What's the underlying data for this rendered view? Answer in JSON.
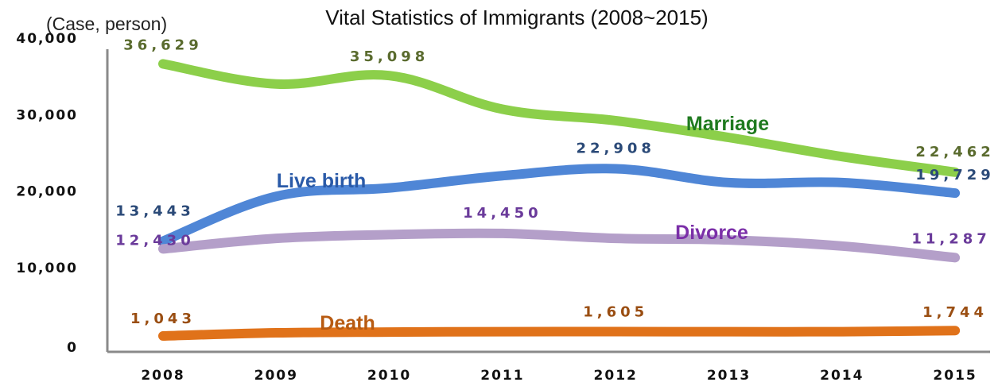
{
  "chart_data": {
    "type": "line",
    "title": "Vital Statistics of Immigrants (2008~2015)",
    "unit_label": "(Case, person)",
    "categories": [
      "2008",
      "2009",
      "2010",
      "2011",
      "2012",
      "2013",
      "2014",
      "2015"
    ],
    "y_ticks": [
      "0",
      "10,000",
      "20,000",
      "30,000",
      "40,000"
    ],
    "ylim": [
      0,
      40000
    ],
    "grid": false,
    "series": [
      {
        "name": "Marriage",
        "color": "#8ccf4a",
        "label_color": "#1f7a1f",
        "value_color": "#5a6b2e",
        "values": [
          36629,
          34000,
          35098,
          30700,
          29200,
          27000,
          24500,
          22462
        ],
        "data_labels": [
          {
            "index": 0,
            "text": "36,629"
          },
          {
            "index": 2,
            "text": "35,098"
          },
          {
            "index": 7,
            "text": "22,462"
          }
        ]
      },
      {
        "name": "Live birth",
        "color": "#4f86d6",
        "label_color": "#2a5aa8",
        "value_color": "#2b4a78",
        "values": [
          13443,
          19300,
          20400,
          22000,
          22908,
          21100,
          21100,
          19729
        ],
        "data_labels": [
          {
            "index": 0,
            "text": "13,443"
          },
          {
            "index": 4,
            "text": "22,908"
          },
          {
            "index": 7,
            "text": "19,729"
          }
        ]
      },
      {
        "name": "Divorce",
        "color": "#b49fc9",
        "label_color": "#7b2fa8",
        "value_color": "#6a3a9a",
        "values": [
          12430,
          13800,
          14300,
          14450,
          13800,
          13600,
          12800,
          11287
        ],
        "data_labels": [
          {
            "index": 0,
            "text": "12,430"
          },
          {
            "index": 3,
            "text": "14,450"
          },
          {
            "index": 7,
            "text": "11,287"
          }
        ]
      },
      {
        "name": "Death",
        "color": "#e0721a",
        "label_color": "#b85b12",
        "value_color": "#9a4e12",
        "values": [
          1043,
          1450,
          1550,
          1600,
          1605,
          1600,
          1600,
          1744
        ],
        "data_labels": [
          {
            "index": 0,
            "text": "1,043"
          },
          {
            "index": 4,
            "text": "1,605"
          },
          {
            "index": 7,
            "text": "1,744"
          }
        ]
      }
    ]
  }
}
